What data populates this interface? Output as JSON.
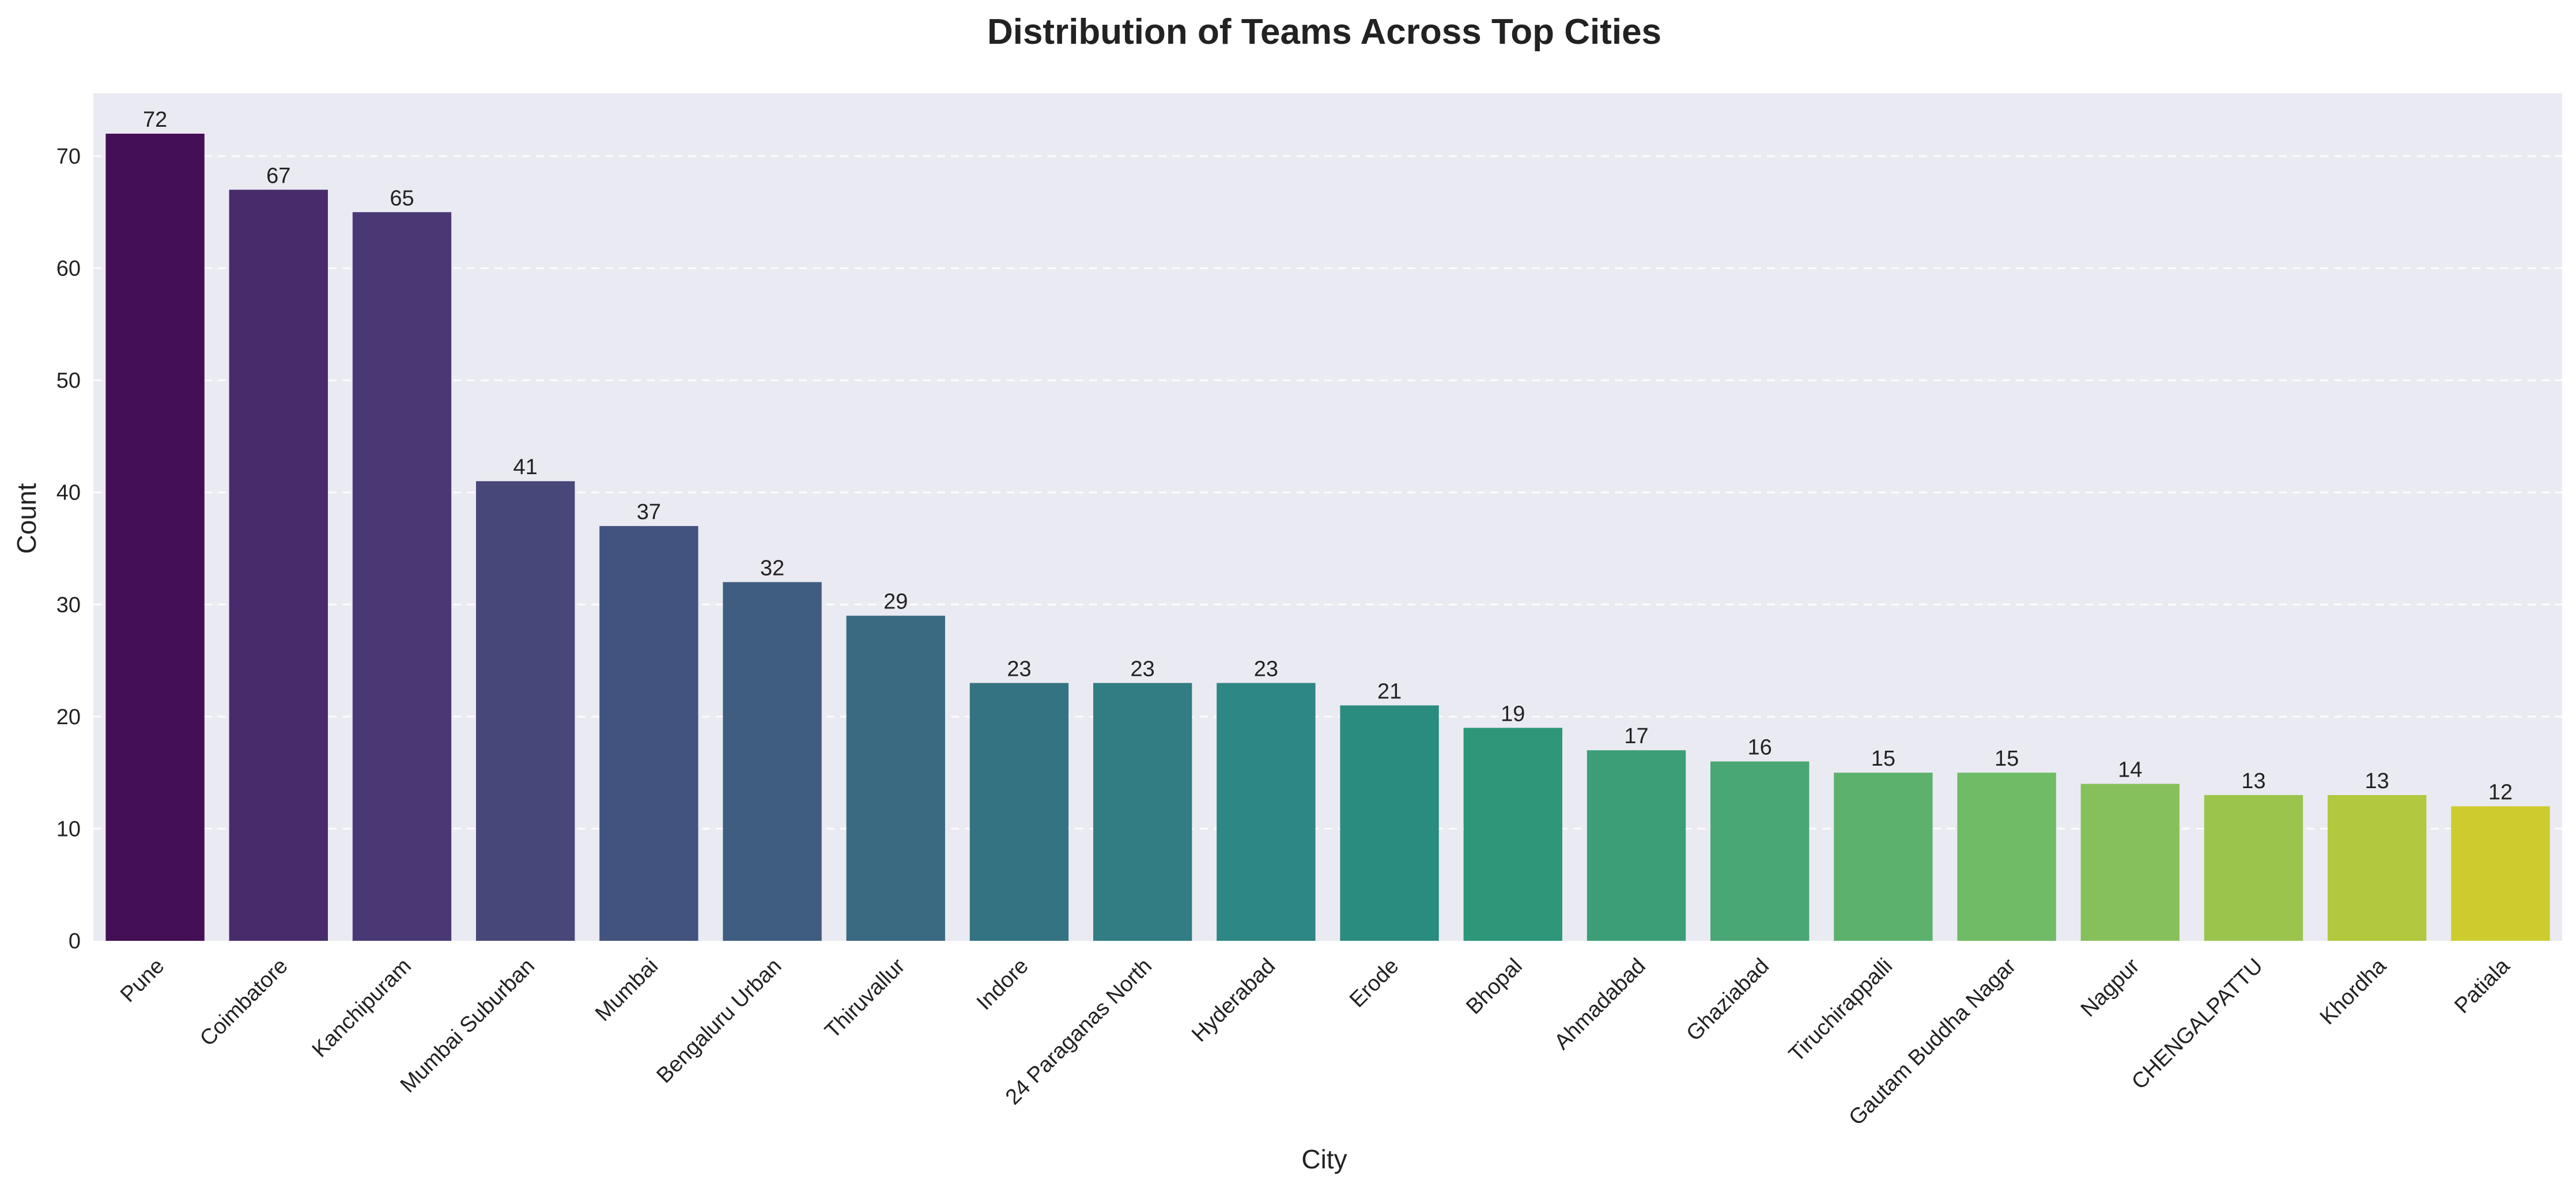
{
  "chart_data": {
    "type": "bar",
    "title": "Distribution of Teams Across Top Cities",
    "xlabel": "City",
    "ylabel": "Count",
    "ylim": [
      0,
      75.6
    ],
    "yticks": [
      0,
      10,
      20,
      30,
      40,
      50,
      60,
      70
    ],
    "grid": true,
    "categories": [
      "Pune",
      "Coimbatore",
      "Kanchipuram",
      "Mumbai Suburban",
      "Mumbai",
      "Bengaluru Urban",
      "Thiruvallur",
      "Indore",
      "24 Paraganas North",
      "Hyderabad",
      "Erode",
      "Bhopal",
      "Ahmadabad",
      "Ghaziabad",
      "Tiruchirappalli",
      "Gautam Buddha Nagar",
      "Nagpur",
      "CHENGALPATTU",
      "Khordha",
      "Patiala"
    ],
    "values": [
      72,
      67,
      65,
      41,
      37,
      32,
      29,
      23,
      23,
      23,
      21,
      19,
      17,
      16,
      15,
      15,
      14,
      13,
      13,
      12
    ],
    "colors": [
      "#440f56",
      "#482b6b",
      "#4a3875",
      "#47477a",
      "#43537f",
      "#3f5d80",
      "#3a6a82",
      "#347382",
      "#317d83",
      "#2d8784",
      "#2a8c7e",
      "#2e977a",
      "#3c9e77",
      "#48a774",
      "#5cb26d",
      "#70bb66",
      "#86c05b",
      "#9ac44c",
      "#b1c83f",
      "#cdcc2f"
    ],
    "background": "#eaeaf2"
  }
}
